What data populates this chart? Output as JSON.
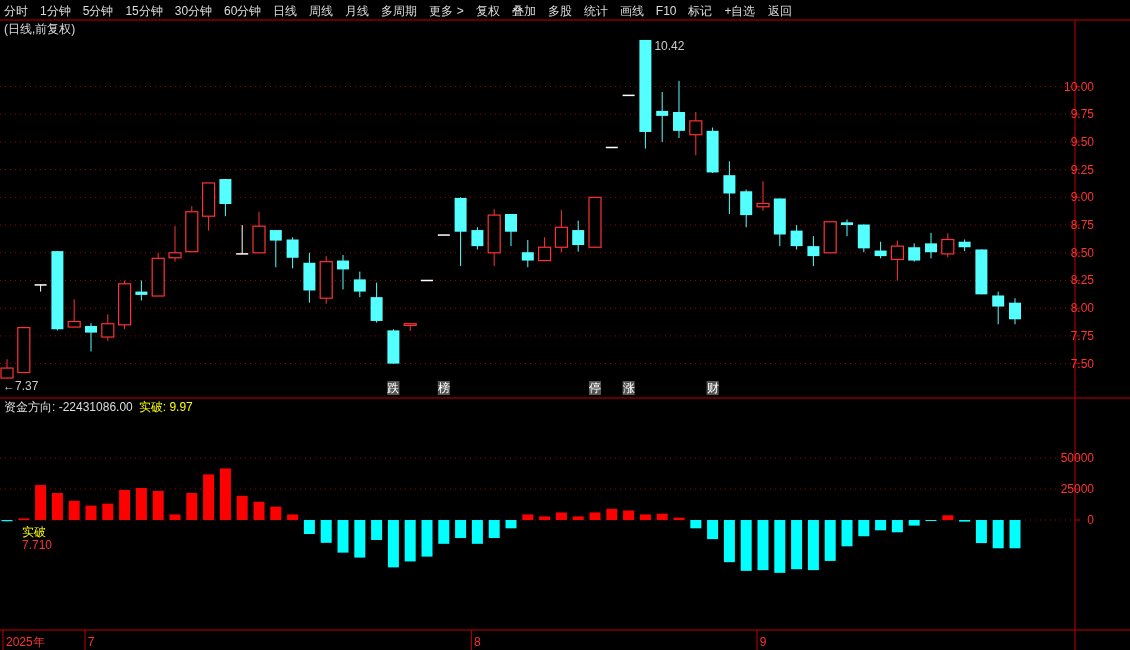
{
  "chart_data": [
    {
      "type": "candlestick",
      "title": "(日线,前复权)",
      "annotations": [
        "分时",
        "1分钟",
        "5分钟",
        "15分钟",
        "30分钟",
        "60分钟",
        "日线",
        "周线",
        "月线",
        "多周期",
        "更多 >",
        "复权",
        "叠加",
        "多股",
        "统计",
        "画线",
        "F10",
        "标记",
        "+自选",
        "返回",
        "←7.37",
        "10.42"
      ],
      "categories": [
        null,
        null,
        null,
        null,
        null,
        null,
        null,
        null,
        null,
        null,
        null,
        null,
        null,
        null,
        null,
        null,
        null,
        null,
        null,
        null,
        null,
        null,
        null,
        "跌",
        null,
        null,
        "榜",
        null,
        null,
        null,
        null,
        null,
        null,
        null,
        null,
        "停",
        null,
        "涨",
        null,
        null,
        null,
        null,
        "财",
        null,
        null,
        null,
        null,
        null,
        null,
        null,
        null,
        null,
        null,
        null,
        null,
        null,
        null,
        null,
        null,
        null,
        null
      ],
      "ohlc": [
        [
          7.37,
          7.54,
          7.37,
          7.46
        ],
        [
          7.42,
          7.83,
          7.42,
          7.825
        ],
        [
          8.21,
          8.21,
          8.15,
          8.21
        ],
        [
          8.515,
          8.515,
          7.8,
          7.81
        ],
        [
          7.83,
          8.08,
          7.83,
          7.88
        ],
        [
          7.84,
          7.865,
          7.61,
          7.78
        ],
        [
          7.74,
          7.945,
          7.705,
          7.86
        ],
        [
          7.85,
          8.25,
          7.81,
          8.22
        ],
        [
          8.15,
          8.25,
          8.07,
          8.12
        ],
        [
          8.11,
          8.5,
          8.11,
          8.45
        ],
        [
          8.455,
          8.74,
          8.42,
          8.5
        ],
        [
          8.51,
          8.92,
          8.51,
          8.87
        ],
        [
          8.83,
          9.13,
          8.7,
          9.13
        ],
        [
          9.165,
          9.165,
          8.83,
          8.94
        ],
        [
          8.49,
          8.75,
          8.49,
          8.49
        ],
        [
          8.5,
          8.87,
          8.5,
          8.74
        ],
        [
          8.705,
          8.705,
          8.37,
          8.61
        ],
        [
          8.62,
          8.64,
          8.36,
          8.455
        ],
        [
          8.41,
          8.5,
          8.05,
          8.16
        ],
        [
          8.09,
          8.47,
          8.04,
          8.42
        ],
        [
          8.43,
          8.48,
          8.17,
          8.35
        ],
        [
          8.26,
          8.33,
          8.1,
          8.15
        ],
        [
          8.1,
          8.23,
          7.87,
          7.885
        ],
        [
          7.8,
          7.81,
          7.5,
          7.5
        ],
        [
          7.845,
          7.86,
          7.795,
          7.86
        ],
        [
          8.25,
          8.25,
          8.25,
          8.25
        ],
        [
          8.66,
          8.66,
          8.66,
          8.66
        ],
        [
          8.995,
          9.0,
          8.38,
          8.69
        ],
        [
          8.705,
          8.73,
          8.53,
          8.56
        ],
        [
          8.5,
          8.895,
          8.38,
          8.84
        ],
        [
          8.85,
          8.85,
          8.56,
          8.69
        ],
        [
          8.505,
          8.615,
          8.37,
          8.43
        ],
        [
          8.43,
          8.64,
          8.43,
          8.55
        ],
        [
          8.55,
          8.885,
          8.505,
          8.73
        ],
        [
          8.705,
          8.79,
          8.51,
          8.57
        ],
        [
          8.55,
          9.0,
          8.55,
          9.0
        ],
        [
          9.45,
          9.45,
          9.45,
          9.45
        ],
        [
          9.92,
          9.92,
          9.92,
          9.92
        ],
        [
          10.42,
          10.42,
          9.44,
          9.59
        ],
        [
          9.78,
          9.95,
          9.5,
          9.735
        ],
        [
          9.77,
          10.05,
          9.535,
          9.6
        ],
        [
          9.565,
          9.77,
          9.38,
          9.69
        ],
        [
          9.6,
          9.63,
          9.22,
          9.225
        ],
        [
          9.2,
          9.325,
          8.85,
          9.035
        ],
        [
          9.055,
          9.07,
          8.73,
          8.84
        ],
        [
          8.915,
          9.145,
          8.88,
          8.945
        ],
        [
          8.99,
          8.99,
          8.56,
          8.665
        ],
        [
          8.7,
          8.75,
          8.53,
          8.56
        ],
        [
          8.56,
          8.65,
          8.38,
          8.47
        ],
        [
          8.5,
          8.78,
          8.5,
          8.78
        ],
        [
          8.775,
          8.8,
          8.65,
          8.75
        ],
        [
          8.755,
          8.755,
          8.505,
          8.54
        ],
        [
          8.52,
          8.6,
          8.45,
          8.47
        ],
        [
          8.44,
          8.61,
          8.25,
          8.56
        ],
        [
          8.55,
          8.585,
          8.42,
          8.43
        ],
        [
          8.585,
          8.68,
          8.45,
          8.505
        ],
        [
          8.49,
          8.675,
          8.46,
          8.62
        ],
        [
          8.6,
          8.62,
          8.515,
          8.55
        ],
        [
          8.53,
          8.53,
          8.125,
          8.125
        ],
        [
          8.115,
          8.15,
          7.855,
          8.015
        ],
        [
          8.05,
          8.09,
          7.855,
          7.9
        ]
      ],
      "ylim": [
        7.19,
        10.6
      ],
      "yticks": [
        {
          "value": 7.5,
          "label": "7.50"
        },
        {
          "value": 7.75,
          "label": "7.75"
        },
        {
          "value": 8.0,
          "label": "8.00"
        },
        {
          "value": 8.25,
          "label": "8.25"
        },
        {
          "value": 8.5,
          "label": "8.50"
        },
        {
          "value": 8.75,
          "label": "8.75"
        },
        {
          "value": 9.0,
          "label": "9.00"
        },
        {
          "value": 9.25,
          "label": "9.25"
        },
        {
          "value": 9.5,
          "label": "9.50"
        },
        {
          "value": 9.75,
          "label": "9.75"
        },
        {
          "value": 10.0,
          "label": "10.00"
        }
      ],
      "grid": "y"
    },
    {
      "type": "bar",
      "title": "资金方向: -22431086.00",
      "subtitle": "实破: 9.97",
      "annotations": [
        "实破",
        "7.710",
        "2025年"
      ],
      "categories": [
        null,
        null,
        null,
        null,
        null,
        "7",
        null,
        null,
        null,
        null,
        null,
        null,
        null,
        null,
        null,
        null,
        null,
        null,
        null,
        null,
        null,
        null,
        null,
        null,
        null,
        null,
        null,
        null,
        "8",
        null,
        null,
        null,
        null,
        null,
        null,
        null,
        null,
        null,
        null,
        null,
        null,
        null,
        null,
        null,
        null,
        "9",
        null,
        null,
        null,
        null,
        null,
        null,
        null,
        null,
        null,
        null,
        null,
        null,
        null,
        null,
        null
      ],
      "values": [
        -1000,
        1300,
        28200,
        21800,
        15500,
        11600,
        13200,
        24200,
        25800,
        23400,
        4500,
        21800,
        36800,
        41600,
        19500,
        14700,
        10800,
        4500,
        -11300,
        -18400,
        -26300,
        -30300,
        -16100,
        -38200,
        -33400,
        -29500,
        -19200,
        -14500,
        -19200,
        -14500,
        -6700,
        4500,
        2900,
        6100,
        2900,
        6100,
        9000,
        7700,
        4500,
        5100,
        1900,
        -6700,
        -15400,
        -34000,
        -41000,
        -40400,
        -42600,
        -39700,
        -40400,
        -33000,
        -21200,
        -13100,
        -8300,
        -9900,
        -4500,
        -600,
        3800,
        -1300,
        -18600,
        -22800,
        -22800
      ],
      "colors": [
        "#00ffff",
        "#ff0000",
        "#ff0000",
        "#ff0000",
        "#ff0000",
        "#ff0000",
        "#ff0000",
        "#ff0000",
        "#ff0000",
        "#ff0000",
        "#ff0000",
        "#ff0000",
        "#ff0000",
        "#ff0000",
        "#ff0000",
        "#ff0000",
        "#ff0000",
        "#ff0000",
        "#00ffff",
        "#00ffff",
        "#00ffff",
        "#00ffff",
        "#00ffff",
        "#00ffff",
        "#00ffff",
        "#00ffff",
        "#00ffff",
        "#00ffff",
        "#00ffff",
        "#00ffff",
        "#00ffff",
        "#ff0000",
        "#ff0000",
        "#ff0000",
        "#ff0000",
        "#ff0000",
        "#ff0000",
        "#ff0000",
        "#ff0000",
        "#ff0000",
        "#ff0000",
        "#00ffff",
        "#00ffff",
        "#00ffff",
        "#00ffff",
        "#00ffff",
        "#00ffff",
        "#00ffff",
        "#00ffff",
        "#00ffff",
        "#00ffff",
        "#00ffff",
        "#00ffff",
        "#00ffff",
        "#00ffff",
        "#00ffff",
        "#ff0000",
        "#00ffff",
        "#00ffff",
        "#00ffff",
        "#00ffff"
      ],
      "ylim": [
        -88700,
        98400
      ],
      "yticks": [
        0,
        25000,
        50000
      ],
      "grid": "y"
    }
  ]
}
